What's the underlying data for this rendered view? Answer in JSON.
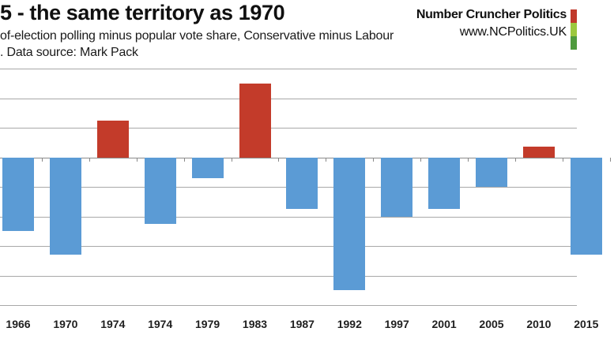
{
  "header": {
    "brand": {
      "name": "Number Cruncher Politics",
      "url": "www.NCPolitics.UK",
      "logo_colors": [
        "#c0392b",
        "#9cc83e",
        "#4f9b3d"
      ]
    }
  },
  "chart_data": {
    "type": "bar",
    "title": "5 - the same territory as 1970",
    "subtitle": "of-election polling minus popular vote share, Conservative minus Labour",
    "source_note": ". Data source: Mark Pack",
    "categories": [
      "1966",
      "1970",
      "1974",
      "1974",
      "1979",
      "1983",
      "1987",
      "1992",
      "1997",
      "2001",
      "2005",
      "2010",
      "2015"
    ],
    "values": [
      -5.0,
      -6.6,
      2.5,
      -4.5,
      -1.4,
      5.0,
      -3.5,
      -9.0,
      -4.0,
      -3.5,
      -2.0,
      0.7,
      -6.6
    ],
    "ylim": [
      -10,
      6
    ],
    "grid_step": 2,
    "grid": true,
    "legend": "none",
    "xlabel": "",
    "ylabel": "",
    "bar_color_positive": "#c33b2a",
    "bar_color_negative": "#5b9bd5",
    "gridline_color": "#a8a8a8",
    "zero_axis_color": "#8a8a8a"
  }
}
